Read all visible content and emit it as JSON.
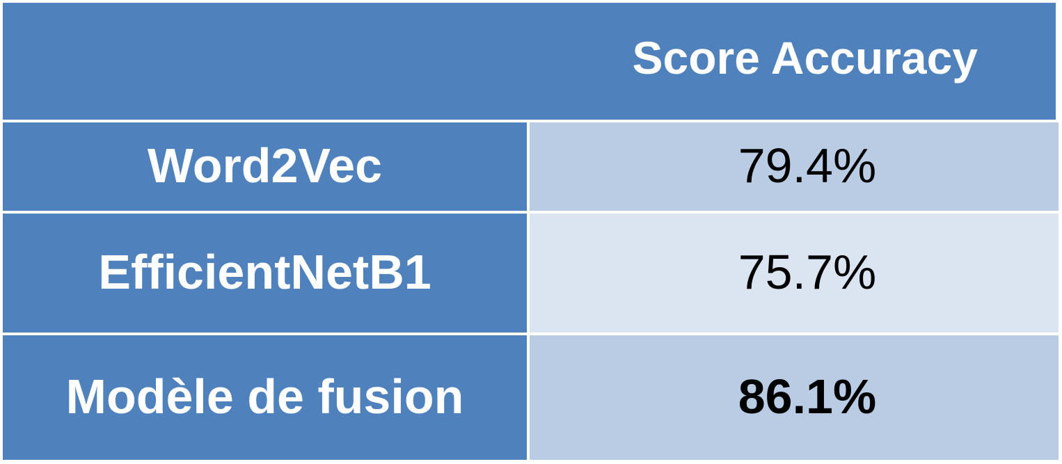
{
  "table": {
    "header": {
      "column_title": "Score Accuracy"
    },
    "rows": [
      {
        "model": "Word2Vec",
        "accuracy": "79.4%"
      },
      {
        "model": "EfficientNetB1",
        "accuracy": "75.7%"
      },
      {
        "model": "Modèle de fusion",
        "accuracy": "86.1%"
      }
    ]
  },
  "colors": {
    "header_bg": "#4f81bd",
    "label_bg": "#4f81bd",
    "value_bg_dark": "#b9cce4",
    "value_bg_light": "#dbe4f1",
    "label_text": "#ffffff",
    "value_text": "#000000"
  }
}
